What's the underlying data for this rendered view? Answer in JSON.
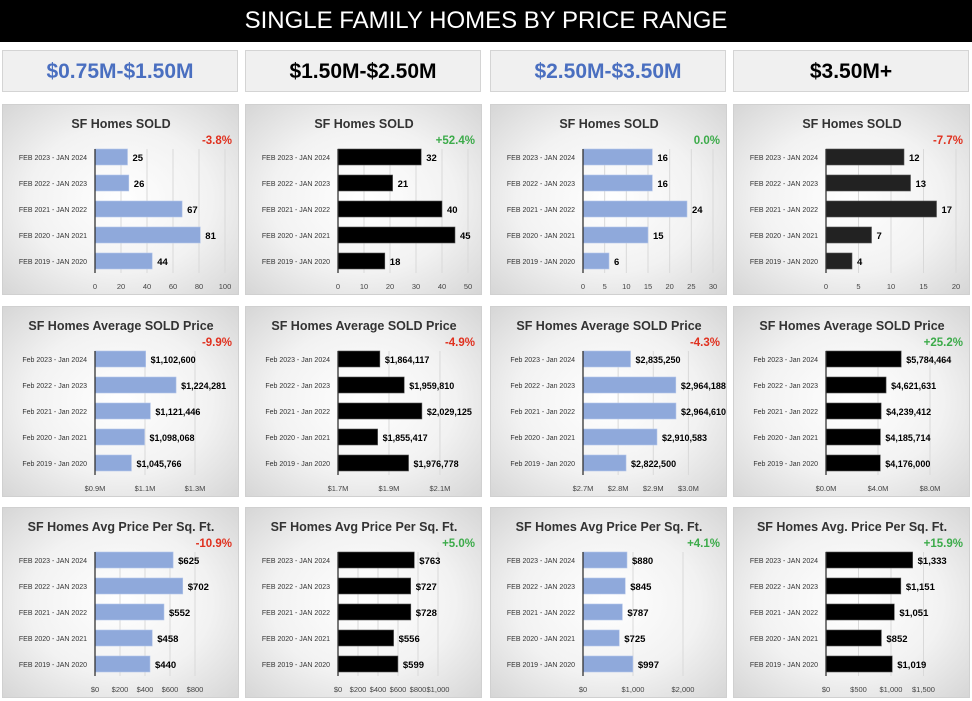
{
  "header": {
    "title": "SINGLE FAMILY HOMES BY PRICE RANGE"
  },
  "ranges": [
    {
      "label": "$0.75M-$1.50M",
      "color": "#4a6fc0"
    },
    {
      "label": "$1.50M-$2.50M",
      "color": "#000000"
    },
    {
      "label": "$2.50M-$3.50M",
      "color": "#4a6fc0"
    },
    {
      "label": "$3.50M+",
      "color": "#000000"
    }
  ],
  "colors": {
    "light_bar": "#8fa9db",
    "dark_bar": "#000000",
    "negative": "#e0301e",
    "positive": "#3cab4a"
  },
  "chart_data": [
    {
      "type": "bar",
      "title": "SF Homes SOLD",
      "change": "-3.8%",
      "change_sign": "negative",
      "bar": "light",
      "categories": [
        "FEB 2023 - JAN 2024",
        "FEB 2022 - JAN 2023",
        "FEB 2021 - JAN 2022",
        "FEB 2020 - JAN 2021",
        "FEB 2019 - JAN 2020"
      ],
      "values": [
        25,
        26,
        67,
        81,
        44
      ],
      "value_labels": [
        "25",
        "26",
        "67",
        "81",
        "44"
      ],
      "xlim": [
        0,
        100
      ],
      "ticks": [
        0,
        20,
        40,
        60,
        80,
        100
      ],
      "tick_labels": [
        "0",
        "20",
        "40",
        "60",
        "80",
        "100"
      ]
    },
    {
      "type": "bar",
      "title": "SF Homes SOLD",
      "change": "+52.4%",
      "change_sign": "positive",
      "bar": "dark",
      "categories": [
        "FEB 2023 - JAN 2024",
        "FEB 2022 - JAN 2023",
        "FEB 2021 - JAN 2022",
        "FEB 2020 - JAN 2021",
        "FEB 2019 - JAN 2020"
      ],
      "values": [
        32,
        21,
        40,
        45,
        18
      ],
      "value_labels": [
        "32",
        "21",
        "40",
        "45",
        "18"
      ],
      "xlim": [
        0,
        50
      ],
      "ticks": [
        0,
        10,
        20,
        30,
        40,
        50
      ],
      "tick_labels": [
        "0",
        "10",
        "20",
        "30",
        "40",
        "50"
      ]
    },
    {
      "type": "bar",
      "title": "SF Homes SOLD",
      "change": "0.0%",
      "change_sign": "positive",
      "bar": "light",
      "categories": [
        "FEB 2023 - JAN 2024",
        "FEB 2022 - JAN 2023",
        "FEB 2021 - JAN 2022",
        "FEB 2020 - JAN 2021",
        "FEB 2019 - JAN 2020"
      ],
      "values": [
        16,
        16,
        24,
        15,
        6
      ],
      "value_labels": [
        "16",
        "16",
        "24",
        "15",
        "6"
      ],
      "xlim": [
        0,
        30
      ],
      "ticks": [
        0,
        5,
        10,
        15,
        20,
        25,
        30
      ],
      "tick_labels": [
        "0",
        "5",
        "10",
        "15",
        "20",
        "25",
        "30"
      ]
    },
    {
      "type": "bar",
      "title": "SF Homes SOLD",
      "change": "-7.7%",
      "change_sign": "negative",
      "bar": "dark2",
      "categories": [
        "FEB 2023 - JAN 2024",
        "FEB 2022 - JAN 2023",
        "FEB 2021 - JAN 2022",
        "FEB 2020 - JAN 2021",
        "FEB 2019 - JAN 2020"
      ],
      "values": [
        12,
        13,
        17,
        7,
        4
      ],
      "value_labels": [
        "12",
        "13",
        "17",
        "7",
        "4"
      ],
      "xlim": [
        0,
        20
      ],
      "ticks": [
        0,
        5,
        10,
        15,
        20
      ],
      "tick_labels": [
        "0",
        "5",
        "10",
        "15",
        "20"
      ]
    },
    {
      "type": "bar",
      "title": "SF Homes Average SOLD Price",
      "change": "-9.9%",
      "change_sign": "negative",
      "bar": "light",
      "categories": [
        "Feb 2023 - Jan 2024",
        "Feb 2022 - Jan 2023",
        "Feb 2021 - Jan 2022",
        "Feb 2020 - Jan 2021",
        "Feb 2019 - Jan 2020"
      ],
      "values": [
        1102600,
        1224281,
        1121446,
        1098068,
        1045766
      ],
      "value_labels": [
        "$1,102,600",
        "$1,224,281",
        "$1,121,446",
        "$1,098,068",
        "$1,045,766"
      ],
      "xlim": [
        900000,
        1420000
      ],
      "ticks": [
        900000,
        1100000,
        1300000
      ],
      "tick_labels": [
        "$0.9M",
        "$1.1M",
        "$1.3M"
      ]
    },
    {
      "type": "bar",
      "title": "SF Homes Average SOLD Price",
      "change": "-4.9%",
      "change_sign": "negative",
      "bar": "dark",
      "categories": [
        "Feb 2023 - Jan 2024",
        "Feb 2022 - Jan 2023",
        "Feb 2021 - Jan 2022",
        "Feb 2020 - Jan 2021",
        "Feb 2019 - Jan 2020"
      ],
      "values": [
        1864117,
        1959810,
        2029125,
        1855417,
        1976778
      ],
      "value_labels": [
        "$1,864,117",
        "$1,959,810",
        "$2,029,125",
        "$1,855,417",
        "$1,976,778"
      ],
      "xlim": [
        1700000,
        2210000
      ],
      "ticks": [
        1700000,
        1900000,
        2100000
      ],
      "tick_labels": [
        "$1.7M",
        "$1.9M",
        "$2.1M"
      ]
    },
    {
      "type": "bar",
      "title": "SF Homes Average SOLD Price",
      "change": "-4.3%",
      "change_sign": "negative",
      "bar": "light",
      "categories": [
        "Feb 2023 - Jan 2024",
        "Feb 2022 - Jan 2023",
        "Feb 2021 - Jan 2022",
        "Feb 2020 - Jan 2021",
        "Feb 2019 - Jan 2020"
      ],
      "values": [
        2835250,
        2964188,
        2964610,
        2910583,
        2822500
      ],
      "value_labels": [
        "$2,835,250",
        "$2,964,188",
        "$2,964,610",
        "$2,910,583",
        "$2,822,500"
      ],
      "xlim": [
        2700000,
        3070000
      ],
      "ticks": [
        2700000,
        2800000,
        2900000,
        3000000
      ],
      "tick_labels": [
        "$2.7M",
        "$2.8M",
        "$2.9M",
        "$3.0M"
      ]
    },
    {
      "type": "bar",
      "title": "SF Homes Average SOLD Price",
      "change": "+25.2%",
      "change_sign": "positive",
      "bar": "dark",
      "categories": [
        "Feb 2023 - Jan 2024",
        "Feb 2022 - Jan 2023",
        "Feb 2021 - Jan 2022",
        "Feb 2020 - Jan 2021",
        "Feb 2019 - Jan 2020"
      ],
      "values": [
        5784464,
        4621631,
        4239412,
        4185714,
        4176000
      ],
      "value_labels": [
        "$5,784,464",
        "$4,621,631",
        "$4,239,412",
        "$4,185,714",
        "$4,176,000"
      ],
      "xlim": [
        0,
        10000000
      ],
      "ticks": [
        0,
        4000000,
        8000000
      ],
      "tick_labels": [
        "$0.0M",
        "$4.0M",
        "$8.0M"
      ]
    },
    {
      "type": "bar",
      "title": "SF Homes Avg Price Per Sq. Ft.",
      "change": "-10.9%",
      "change_sign": "negative",
      "bar": "light",
      "categories": [
        "FEB 2023 - JAN 2024",
        "FEB 2022 - JAN 2023",
        "FEB 2021 - JAN 2022",
        "FEB 2020 - JAN 2021",
        "FEB 2019 - JAN 2020"
      ],
      "values": [
        625,
        702,
        552,
        458,
        440
      ],
      "value_labels": [
        "$625",
        "$702",
        "$552",
        "$458",
        "$440"
      ],
      "xlim": [
        0,
        1040
      ],
      "ticks": [
        0,
        200,
        400,
        600,
        800
      ],
      "tick_labels": [
        "$0",
        "$200",
        "$400",
        "$600",
        "$800"
      ]
    },
    {
      "type": "bar",
      "title": "SF Homes Avg Price Per Sq. Ft.",
      "change": "+5.0%",
      "change_sign": "positive",
      "bar": "dark",
      "categories": [
        "FEB 2023 - JAN 2024",
        "FEB 2022 - JAN 2023",
        "FEB 2021 - JAN 2022",
        "FEB 2020 - JAN 2021",
        "FEB 2019 - JAN 2020"
      ],
      "values": [
        763,
        727,
        728,
        556,
        599
      ],
      "value_labels": [
        "$763",
        "$727",
        "$728",
        "$556",
        "$599"
      ],
      "xlim": [
        0,
        1300
      ],
      "ticks": [
        0,
        200,
        400,
        600,
        800,
        1000
      ],
      "tick_labels": [
        "$0",
        "$200",
        "$400",
        "$600",
        "$800",
        "$1,000"
      ]
    },
    {
      "type": "bar",
      "title": "SF Homes Avg Price Per Sq. Ft.",
      "change": "+4.1%",
      "change_sign": "positive",
      "bar": "light",
      "categories": [
        "FEB 2023 - JAN 2024",
        "FEB 2022 - JAN 2023",
        "FEB 2021 - JAN 2022",
        "FEB 2020 - JAN 2021",
        "FEB 2019 - JAN 2020"
      ],
      "values": [
        880,
        845,
        787,
        725,
        997
      ],
      "value_labels": [
        "$880",
        "$845",
        "$787",
        "$725",
        "$997"
      ],
      "xlim": [
        0,
        2600
      ],
      "ticks": [
        0,
        1000,
        2000
      ],
      "tick_labels": [
        "$0",
        "$1,000",
        "$2,000"
      ]
    },
    {
      "type": "bar",
      "title": "SF Homes Avg. Price Per Sq. Ft.",
      "change": "+15.9%",
      "change_sign": "positive",
      "bar": "dark",
      "categories": [
        "FEB 2023 - JAN 2024",
        "FEB 2022 - JAN 2023",
        "FEB 2021 - JAN 2022",
        "FEB 2020 - JAN 2021",
        "FEB 2019 - JAN 2020"
      ],
      "values": [
        1333,
        1151,
        1051,
        852,
        1019
      ],
      "value_labels": [
        "$1,333",
        "$1,151",
        "$1,051",
        "$852",
        "$1,019"
      ],
      "xlim": [
        0,
        2000
      ],
      "ticks": [
        0,
        500,
        1000,
        1500
      ],
      "tick_labels": [
        "$0",
        "$500",
        "$1,000",
        "$1,500"
      ]
    }
  ]
}
